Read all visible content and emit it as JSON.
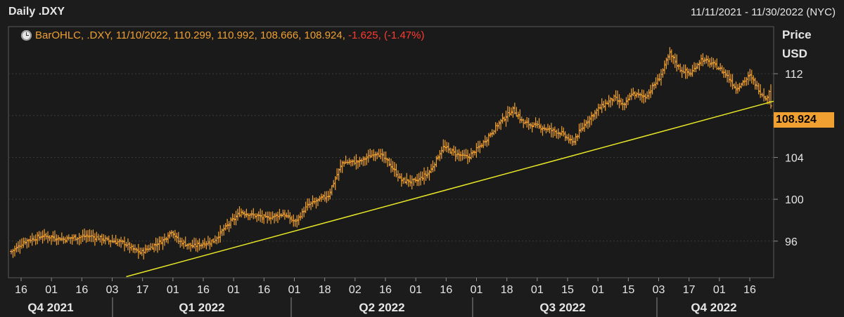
{
  "header": {
    "title": "Daily .DXY",
    "date_range": "11/11/2021 - 11/30/2022 (NYC)"
  },
  "legend": {
    "label": "BarOHLC, .DXY, 11/10/2022, 110.299, 110.992, 108.666, 108.924,",
    "change": "-1.625,",
    "change_pct": "(-1.47%)"
  },
  "yaxis": {
    "label_line1": "Price",
    "label_line2": "USD",
    "last_price": "108.924"
  },
  "colors": {
    "background": "#1c1c1c",
    "bars": "#f0a030",
    "trendline": "#e8e826",
    "negative": "#ff3b30",
    "grid": "#3a3a3a"
  },
  "chart_data": {
    "type": "bar",
    "subtype": "ohlc",
    "title": "Daily .DXY",
    "ylabel": "Price USD",
    "ylim": [
      92.5,
      116.5
    ],
    "yticks": [
      96,
      100,
      104,
      108,
      112
    ],
    "grid": true,
    "x_tick_labels": [
      "16",
      "01",
      "16",
      "03",
      "17",
      "01",
      "16",
      "01",
      "16",
      "01",
      "18",
      "02",
      "16",
      "01",
      "16",
      "01",
      "18",
      "01",
      "15",
      "01",
      "15",
      "03",
      "17",
      "01",
      "16"
    ],
    "quarter_labels": [
      "Q4 2021",
      "Q1 2022",
      "Q2 2022",
      "Q3 2022",
      "Q4 2022"
    ],
    "last_bar": {
      "date": "11/10/2022",
      "open": 110.299,
      "high": 110.992,
      "low": 108.666,
      "close": 108.924,
      "change": -1.625,
      "change_pct": -1.47
    },
    "close_path": [
      {
        "i": 0,
        "v": 95.0
      },
      {
        "i": 8,
        "v": 96.0
      },
      {
        "i": 18,
        "v": 96.5
      },
      {
        "i": 30,
        "v": 96.2
      },
      {
        "i": 45,
        "v": 96.5
      },
      {
        "i": 55,
        "v": 96.1
      },
      {
        "i": 65,
        "v": 95.8
      },
      {
        "i": 70,
        "v": 95.2
      },
      {
        "i": 74,
        "v": 94.9
      },
      {
        "i": 80,
        "v": 95.4
      },
      {
        "i": 88,
        "v": 96.2
      },
      {
        "i": 92,
        "v": 97.0
      },
      {
        "i": 96,
        "v": 96.0
      },
      {
        "i": 104,
        "v": 95.5
      },
      {
        "i": 116,
        "v": 96.0
      },
      {
        "i": 124,
        "v": 97.5
      },
      {
        "i": 132,
        "v": 98.8
      },
      {
        "i": 138,
        "v": 98.5
      },
      {
        "i": 146,
        "v": 98.2
      },
      {
        "i": 156,
        "v": 98.6
      },
      {
        "i": 163,
        "v": 97.8
      },
      {
        "i": 170,
        "v": 99.4
      },
      {
        "i": 182,
        "v": 100.4
      },
      {
        "i": 190,
        "v": 103.5
      },
      {
        "i": 200,
        "v": 103.6
      },
      {
        "i": 210,
        "v": 104.5
      },
      {
        "i": 216,
        "v": 103.6
      },
      {
        "i": 224,
        "v": 101.8
      },
      {
        "i": 232,
        "v": 101.7
      },
      {
        "i": 240,
        "v": 102.6
      },
      {
        "i": 248,
        "v": 105.0
      },
      {
        "i": 256,
        "v": 104.3
      },
      {
        "i": 262,
        "v": 104.0
      },
      {
        "i": 270,
        "v": 105.2
      },
      {
        "i": 280,
        "v": 107.3
      },
      {
        "i": 288,
        "v": 108.6
      },
      {
        "i": 294,
        "v": 107.3
      },
      {
        "i": 302,
        "v": 107.0
      },
      {
        "i": 310,
        "v": 106.6
      },
      {
        "i": 316,
        "v": 106.3
      },
      {
        "i": 322,
        "v": 105.4
      },
      {
        "i": 330,
        "v": 107.4
      },
      {
        "i": 338,
        "v": 108.8
      },
      {
        "i": 346,
        "v": 109.7
      },
      {
        "i": 352,
        "v": 108.9
      },
      {
        "i": 356,
        "v": 110.1
      },
      {
        "i": 364,
        "v": 109.8
      },
      {
        "i": 372,
        "v": 111.6
      },
      {
        "i": 378,
        "v": 113.9
      },
      {
        "i": 384,
        "v": 112.4
      },
      {
        "i": 390,
        "v": 112.0
      },
      {
        "i": 396,
        "v": 113.4
      },
      {
        "i": 404,
        "v": 112.8
      },
      {
        "i": 410,
        "v": 112.0
      },
      {
        "i": 416,
        "v": 110.6
      },
      {
        "i": 424,
        "v": 111.8
      },
      {
        "i": 430,
        "v": 110.2
      },
      {
        "i": 435,
        "v": 109.5
      },
      {
        "i": 436,
        "v": 108.924
      }
    ],
    "trendline": [
      {
        "i": 66,
        "v": 92.6
      },
      {
        "i": 436,
        "v": 109.3
      }
    ]
  }
}
